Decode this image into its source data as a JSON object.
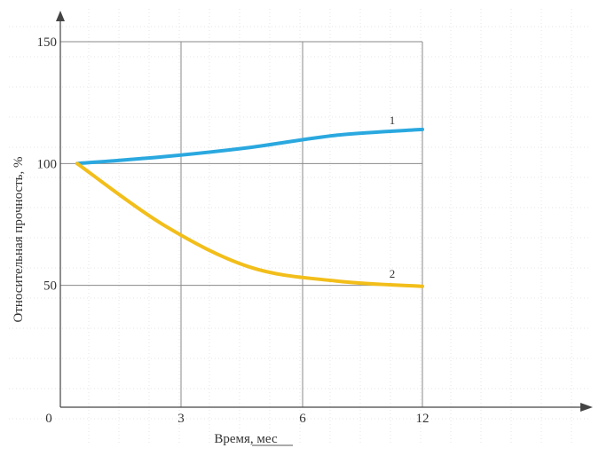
{
  "chart_data": {
    "type": "line",
    "xlabel": "Время, мес",
    "ylabel": "Относительная прочность, %",
    "x_ticks": [
      "0",
      "3",
      "6",
      "12"
    ],
    "y_ticks": [
      "50",
      "100",
      "150"
    ],
    "xlim": [
      0,
      12
    ],
    "ylim": [
      0,
      150
    ],
    "grid": true,
    "series": [
      {
        "name": "1",
        "color": "#2aa8df",
        "x": [
          0,
          3,
          6,
          9,
          12
        ],
        "y": [
          100,
          102.8,
          106.6,
          111.6,
          114
        ]
      },
      {
        "name": "2",
        "color": "#f2be1a",
        "x": [
          0,
          3,
          6,
          9,
          12
        ],
        "y": [
          100,
          74.8,
          57.5,
          51.8,
          49.6
        ]
      }
    ]
  }
}
